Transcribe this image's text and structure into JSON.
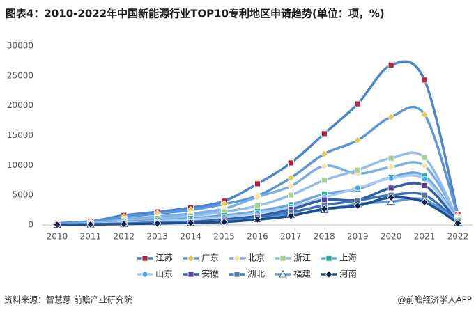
{
  "chart_data": {
    "type": "line",
    "title": "图表4：2010-2022年中国新能源行业TOP10专利地区申请趋势(单位：项，%)",
    "source": "资料来源：智慧芽 前瞻产业研究院",
    "credit": "@前瞻经济学人APP",
    "categories": [
      "2010",
      "2011",
      "2012",
      "2013",
      "2014",
      "2015",
      "2016",
      "2017",
      "2018",
      "2019",
      "2020",
      "2021",
      "2022"
    ],
    "ylim": [
      0,
      30000
    ],
    "yticks": [
      0,
      5000,
      10000,
      15000,
      20000,
      25000,
      30000
    ],
    "smooth": true,
    "series": [
      {
        "name": "江苏",
        "color": "#4a86cf",
        "marker": "square",
        "marker_color": "#b0243a",
        "values": [
          300,
          600,
          1600,
          2200,
          2900,
          4000,
          6900,
          10400,
          15300,
          20300,
          26800,
          24300,
          1800
        ]
      },
      {
        "name": "广东",
        "color": "#5b97d8",
        "marker": "diamond",
        "marker_color": "#e8c84a",
        "values": [
          200,
          500,
          1300,
          1900,
          2500,
          3500,
          4900,
          7900,
          11900,
          14200,
          18100,
          18500,
          1500
        ]
      },
      {
        "name": "北京",
        "color": "#7aaee6",
        "marker": "diamond",
        "marker_color": "#f2e79a",
        "values": [
          100,
          300,
          900,
          1400,
          1900,
          2700,
          4700,
          6500,
          9900,
          8600,
          9700,
          9900,
          1200
        ]
      },
      {
        "name": "浙江",
        "color": "#92bde8",
        "marker": "square",
        "marker_color": "#a8d08d",
        "values": [
          100,
          300,
          700,
          1100,
          1500,
          2200,
          3200,
          5000,
          7500,
          9200,
          11200,
          11300,
          1000
        ]
      },
      {
        "name": "上海",
        "color": "#6aa5e0",
        "marker": "square",
        "marker_color": "#2eb39a",
        "values": [
          100,
          200,
          500,
          800,
          1100,
          1600,
          2300,
          3400,
          5200,
          6000,
          8000,
          8200,
          800
        ]
      },
      {
        "name": "山东",
        "color": "#a9cdf0",
        "marker": "circle",
        "marker_color": "#3fa9e8",
        "values": [
          50,
          150,
          400,
          600,
          900,
          1300,
          2000,
          3000,
          4600,
          6200,
          7800,
          7700,
          700
        ]
      },
      {
        "name": "安徽",
        "color": "#2f5fa8",
        "marker": "square",
        "marker_color": "#5a3fa0",
        "values": [
          50,
          100,
          200,
          400,
          500,
          900,
          1500,
          2600,
          4200,
          4200,
          6200,
          6600,
          500
        ]
      },
      {
        "name": "湖北",
        "color": "#3c72bb",
        "marker": "square",
        "marker_color": "#5b7a99",
        "values": [
          50,
          100,
          200,
          300,
          400,
          700,
          1200,
          2100,
          3300,
          4100,
          5000,
          5000,
          500
        ]
      },
      {
        "name": "福建",
        "color": "#5d9ad6",
        "marker": "triangle",
        "marker_color": "#ffffff",
        "values": [
          50,
          100,
          200,
          300,
          400,
          600,
          1000,
          1700,
          2500,
          3500,
          3900,
          4200,
          400
        ]
      },
      {
        "name": "河南",
        "color": "#1f4e8c",
        "marker": "diamond",
        "marker_color": "#0d1f4a",
        "values": [
          30,
          80,
          150,
          250,
          350,
          500,
          900,
          1500,
          2700,
          3200,
          4600,
          3800,
          300
        ]
      }
    ]
  }
}
